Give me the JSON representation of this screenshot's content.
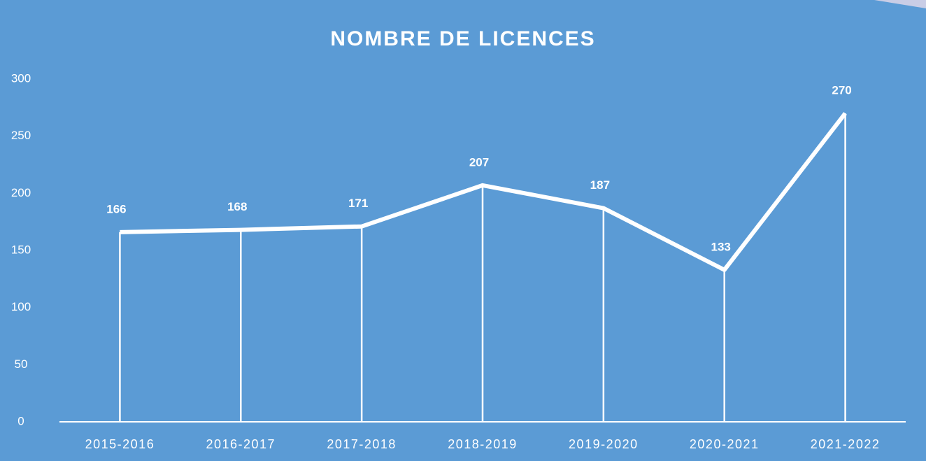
{
  "chart_data": {
    "type": "line",
    "title": "NOMBRE DE LICENCES",
    "categories": [
      "2015-2016",
      "2016-2017",
      "2017-2018",
      "2018-2019",
      "2019-2020",
      "2020-2021",
      "2021-2022"
    ],
    "values": [
      166,
      168,
      171,
      207,
      187,
      133,
      270
    ],
    "color": "#ffffff",
    "ylim": [
      0,
      300
    ],
    "yticks": [
      0,
      50,
      100,
      150,
      200,
      250,
      300
    ],
    "grid": false
  }
}
